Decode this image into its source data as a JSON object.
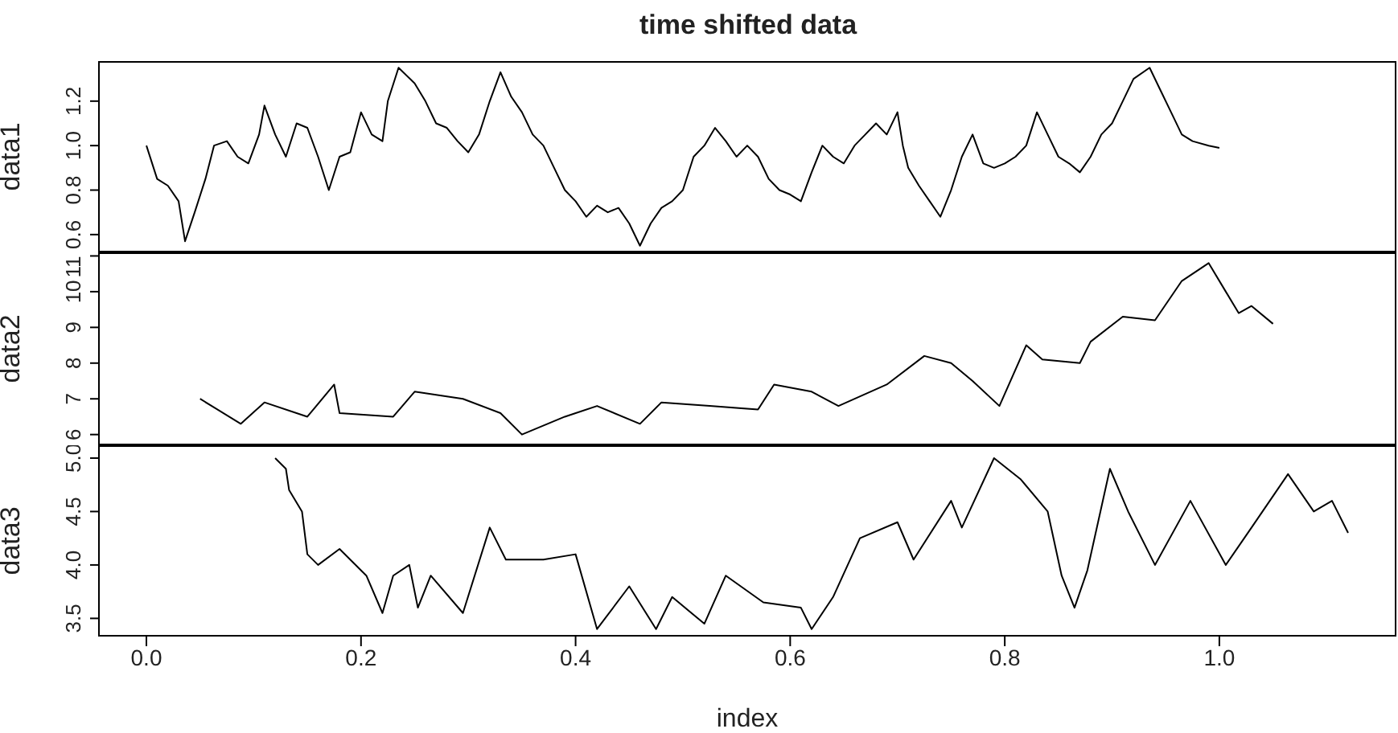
{
  "chart_data": [
    {
      "type": "line",
      "title": "time shifted data",
      "ylabel": "data1",
      "color": "#000000",
      "xlim": [
        -0.045,
        1.165
      ],
      "xticks": [
        0,
        0.2,
        0.4,
        0.6,
        0.8,
        1.0
      ],
      "ylim": [
        0.52,
        1.38
      ],
      "yticks": [
        0.6,
        0.8,
        {
          "value": 1,
          "label": "1.0"
        },
        1.2
      ],
      "tick_labels": "y",
      "x": [
        0,
        0.01,
        0.02,
        0.03,
        0.036,
        0.045,
        0.055,
        0.063,
        0.075,
        0.085,
        0.095,
        0.105,
        0.11,
        0.12,
        0.13,
        0.14,
        0.15,
        0.16,
        0.17,
        0.18,
        0.19,
        0.2,
        0.21,
        0.22,
        0.225,
        0.235,
        0.25,
        0.26,
        0.27,
        0.28,
        0.29,
        0.3,
        0.31,
        0.32,
        0.33,
        0.34,
        0.35,
        0.36,
        0.37,
        0.38,
        0.39,
        0.4,
        0.41,
        0.42,
        0.43,
        0.44,
        0.45,
        0.46,
        0.47,
        0.48,
        0.49,
        0.5,
        0.51,
        0.52,
        0.53,
        0.54,
        0.55,
        0.56,
        0.57,
        0.58,
        0.59,
        0.6,
        0.61,
        0.62,
        0.63,
        0.64,
        0.65,
        0.66,
        0.67,
        0.68,
        0.69,
        0.7,
        0.705,
        0.71,
        0.72,
        0.73,
        0.74,
        0.75,
        0.76,
        0.77,
        0.78,
        0.79,
        0.8,
        0.81,
        0.82,
        0.83,
        0.84,
        0.85,
        0.86,
        0.87,
        0.88,
        0.89,
        0.9,
        0.91,
        0.92,
        0.935,
        0.945,
        0.955,
        0.965,
        0.975,
        0.99,
        1.0
      ],
      "values": [
        1.0,
        0.85,
        0.82,
        0.75,
        0.57,
        0.7,
        0.85,
        1.0,
        1.02,
        0.95,
        0.92,
        1.05,
        1.18,
        1.05,
        0.95,
        1.1,
        1.08,
        0.95,
        0.8,
        0.95,
        0.97,
        1.15,
        1.05,
        1.02,
        1.2,
        1.35,
        1.28,
        1.2,
        1.1,
        1.08,
        1.02,
        0.97,
        1.05,
        1.2,
        1.33,
        1.22,
        1.15,
        1.05,
        1.0,
        0.9,
        0.8,
        0.75,
        0.68,
        0.73,
        0.7,
        0.72,
        0.65,
        0.55,
        0.65,
        0.72,
        0.75,
        0.8,
        0.95,
        1.0,
        1.08,
        1.02,
        0.95,
        1.0,
        0.95,
        0.85,
        0.8,
        0.78,
        0.75,
        0.88,
        1.0,
        0.95,
        0.92,
        1.0,
        1.05,
        1.1,
        1.05,
        1.15,
        1.0,
        0.9,
        0.82,
        0.75,
        0.68,
        0.8,
        0.95,
        1.05,
        0.92,
        0.9,
        0.92,
        0.95,
        1.0,
        1.15,
        1.05,
        0.95,
        0.92,
        0.88,
        0.95,
        1.05,
        1.1,
        1.2,
        1.3,
        1.35,
        1.25,
        1.15,
        1.05,
        1.02,
        1.0,
        0.99
      ]
    },
    {
      "type": "line",
      "ylabel": "data2",
      "color": "#000000",
      "xlim": [
        -0.045,
        1.165
      ],
      "xticks": [
        0,
        0.2,
        0.4,
        0.6,
        0.8,
        1.0
      ],
      "ylim": [
        5.7,
        11.1
      ],
      "yticks": [
        6,
        7,
        8,
        9,
        10,
        11
      ],
      "tick_labels": "y",
      "x": [
        0.05,
        0.088,
        0.11,
        0.15,
        0.175,
        0.18,
        0.23,
        0.25,
        0.295,
        0.33,
        0.35,
        0.39,
        0.42,
        0.46,
        0.48,
        0.525,
        0.57,
        0.585,
        0.62,
        0.645,
        0.69,
        0.725,
        0.75,
        0.77,
        0.795,
        0.82,
        0.835,
        0.87,
        0.88,
        0.91,
        0.94,
        0.965,
        0.99,
        1.006,
        1.018,
        1.03,
        1.05
      ],
      "values": [
        7.0,
        6.3,
        6.9,
        6.5,
        7.4,
        6.6,
        6.5,
        7.2,
        7.0,
        6.6,
        6.0,
        6.5,
        6.8,
        6.3,
        6.9,
        6.8,
        6.7,
        7.4,
        7.2,
        6.8,
        7.4,
        8.2,
        8.0,
        7.5,
        6.8,
        8.5,
        8.1,
        8.0,
        8.6,
        9.3,
        9.2,
        10.3,
        10.8,
        10.0,
        9.4,
        9.6,
        9.1
      ]
    },
    {
      "type": "line",
      "ylabel": "data3",
      "xlabel": "index",
      "color": "#000000",
      "xlim": [
        -0.045,
        1.165
      ],
      "xticks": [
        {
          "value": 0,
          "label": "0.0"
        },
        0.2,
        0.4,
        0.6,
        0.8,
        {
          "value": 1,
          "label": "1.0"
        }
      ],
      "ylim": [
        3.33,
        5.12
      ],
      "yticks": [
        3.5,
        {
          "value": 4,
          "label": "4.0"
        },
        4.5,
        {
          "value": 5,
          "label": "5.0"
        }
      ],
      "x": [
        0.12,
        0.13,
        0.133,
        0.145,
        0.15,
        0.16,
        0.18,
        0.205,
        0.22,
        0.23,
        0.245,
        0.253,
        0.265,
        0.295,
        0.32,
        0.335,
        0.37,
        0.4,
        0.42,
        0.45,
        0.475,
        0.49,
        0.52,
        0.54,
        0.575,
        0.61,
        0.62,
        0.64,
        0.665,
        0.7,
        0.715,
        0.75,
        0.76,
        0.79,
        0.815,
        0.84,
        0.853,
        0.865,
        0.877,
        0.898,
        0.915,
        0.94,
        0.973,
        1.006,
        1.03,
        1.064,
        1.088,
        1.105,
        1.12
      ],
      "values": [
        5.0,
        4.9,
        4.7,
        4.5,
        4.1,
        4.0,
        4.15,
        3.9,
        3.55,
        3.9,
        4.0,
        3.6,
        3.9,
        3.55,
        4.35,
        4.05,
        4.05,
        4.1,
        3.4,
        3.8,
        3.4,
        3.7,
        3.45,
        3.9,
        3.65,
        3.6,
        3.4,
        3.7,
        4.25,
        4.4,
        4.05,
        4.6,
        4.35,
        5.0,
        4.8,
        4.5,
        3.9,
        3.6,
        3.95,
        4.9,
        4.5,
        4.0,
        4.6,
        4.0,
        4.35,
        4.85,
        4.5,
        4.6,
        4.3
      ]
    }
  ]
}
